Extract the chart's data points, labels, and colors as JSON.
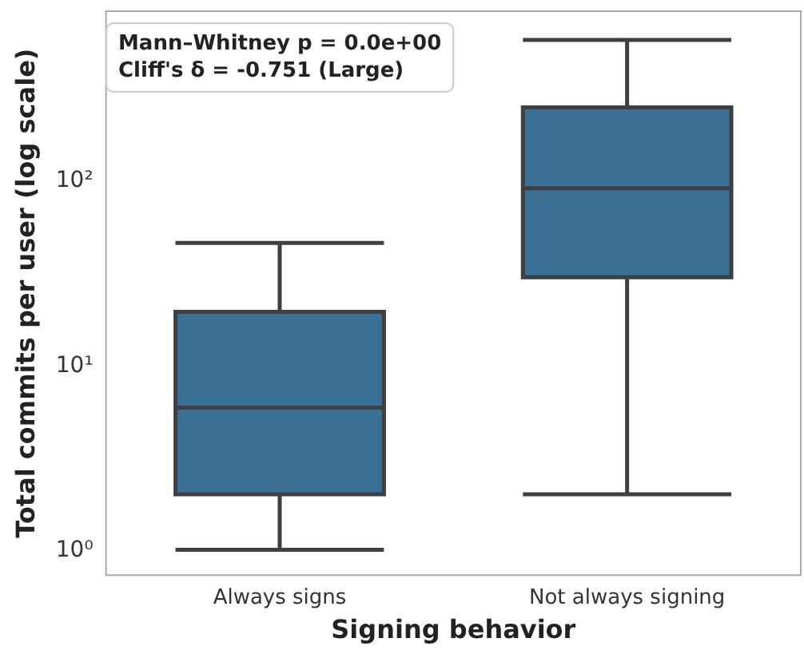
{
  "chart_data": {
    "type": "box",
    "xlabel": "Signing behavior",
    "ylabel": "Total commits per user (log scale)",
    "categories": [
      "Always signs",
      "Not always signing"
    ],
    "series": [
      {
        "color": "#3a6f96",
        "boxes": [
          {
            "low": 1,
            "q1": 2,
            "median": 5.9,
            "q3": 19.5,
            "high": 46
          },
          {
            "low": 2,
            "q1": 30,
            "median": 91,
            "q3": 250,
            "high": 580
          }
        ]
      }
    ],
    "log": "y",
    "ylim": [
      0.73,
      830
    ],
    "yticks": [
      {
        "value": 1,
        "label": "10⁰"
      },
      {
        "value": 10,
        "label": "10¹"
      },
      {
        "value": 100,
        "label": "10²"
      }
    ],
    "grid": false,
    "annotations": [
      "Mann–Whitney p = 0.0e+00",
      "Cliff's δ = -0.751 (Large)"
    ]
  }
}
